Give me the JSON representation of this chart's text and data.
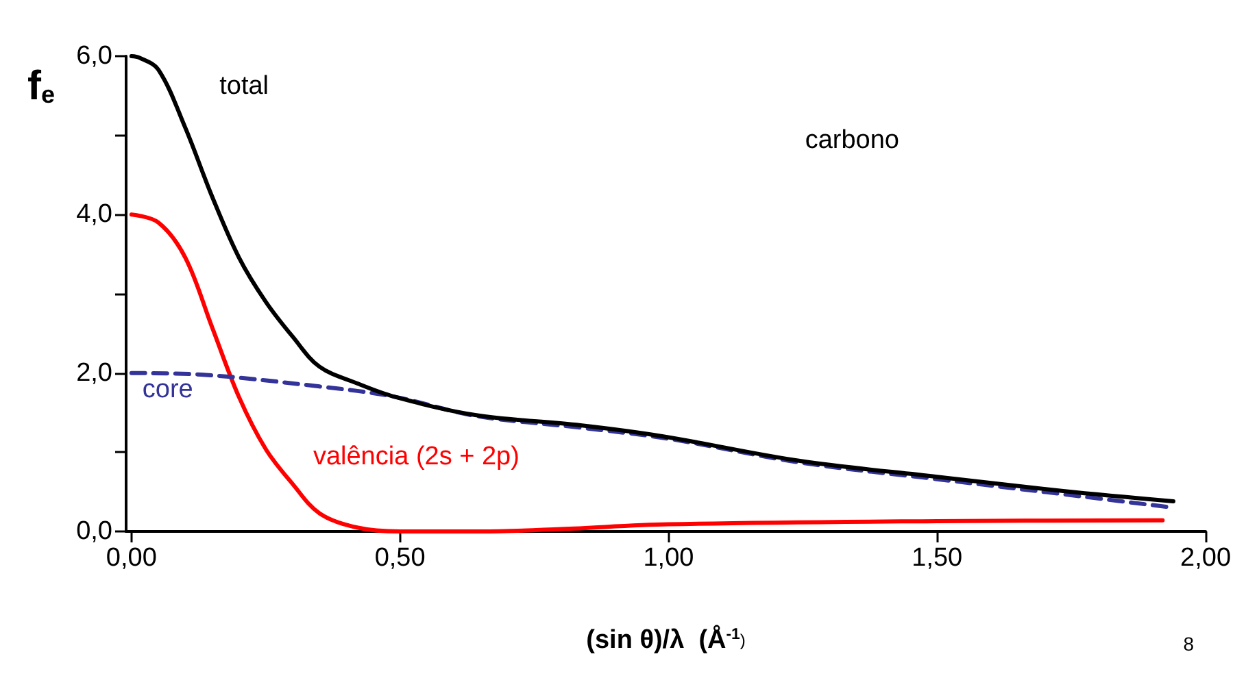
{
  "chart_data": {
    "type": "line",
    "xlabel": "(sin θ)/λ  (Å$^{-1}$)",
    "ylabel": "f$_{e}$",
    "annotations": [
      "carbono",
      "8"
    ],
    "xlim": [
      -0.01,
      2.0
    ],
    "xticks": [
      {
        "value": 0,
        "label": "0,00"
      },
      {
        "value": 0.5,
        "label": "0,50"
      },
      {
        "value": 1,
        "label": "1,00"
      },
      {
        "value": 1.5,
        "label": "1,50"
      },
      {
        "value": 2,
        "label": "2,00"
      }
    ],
    "ylim": [
      0,
      6
    ],
    "yticks": [
      {
        "value": 0,
        "label": "0,0"
      },
      {
        "value": 1,
        "label": null
      },
      {
        "value": 2,
        "label": "2,0"
      },
      {
        "value": 3,
        "label": null
      },
      {
        "value": 4,
        "label": "4,0"
      },
      {
        "value": 5,
        "label": null
      },
      {
        "value": 6,
        "label": "6,0"
      }
    ],
    "grid": false,
    "legend": false,
    "marker": "none",
    "series": [
      {
        "name": "total",
        "color": "#000000",
        "line_style": "solid",
        "x": [
          0,
          0.015,
          0.05,
          0.1,
          0.15,
          0.2,
          0.25,
          0.3,
          0.35,
          0.42,
          0.49,
          0.64,
          0.836,
          0.99,
          1.245,
          1.5,
          1.735,
          1.94
        ],
        "values": [
          6.0,
          5.98,
          5.83,
          5.1,
          4.23,
          3.46,
          2.9,
          2.46,
          2.08,
          1.87,
          1.7,
          1.47,
          1.34,
          1.2,
          0.89,
          0.69,
          0.51,
          0.38
        ]
      },
      {
        "name": "core",
        "color": "#333399",
        "line_style": "dashed",
        "x": [
          0,
          0.13,
          0.35,
          0.49,
          0.64,
          0.836,
          1.0,
          1.245,
          1.5,
          1.735,
          1.94
        ],
        "values": [
          2.0,
          1.98,
          1.83,
          1.7,
          1.46,
          1.31,
          1.17,
          0.87,
          0.66,
          0.47,
          0.3
        ]
      },
      {
        "name": "valência (2s + 2p)",
        "color": "#ff0000",
        "line_style": "solid",
        "x": [
          0,
          0.05,
          0.1,
          0.15,
          0.2,
          0.25,
          0.3,
          0.35,
          0.42,
          0.5,
          0.65,
          0.8,
          1.0,
          1.5,
          1.92
        ],
        "values": [
          4.0,
          3.9,
          3.46,
          2.58,
          1.7,
          1.04,
          0.6,
          0.23,
          0.05,
          0.0,
          0.0,
          0.03,
          0.09,
          0.13,
          0.14
        ]
      }
    ]
  }
}
